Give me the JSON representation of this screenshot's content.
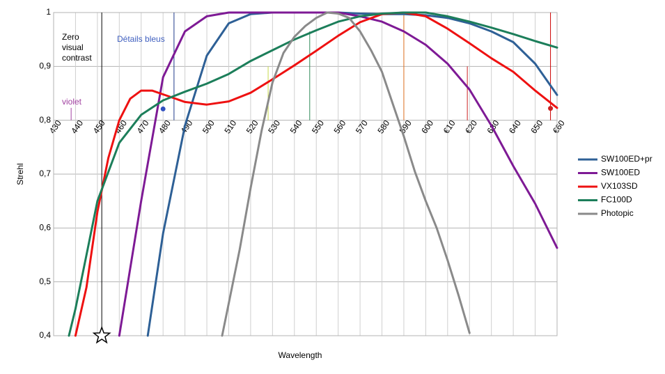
{
  "chart_data": {
    "type": "line",
    "x_label": "Wavelength",
    "y_label": "Strehl",
    "xlim": [
      430,
      660
    ],
    "ylim": [
      0.4,
      1
    ],
    "xticks": [
      430,
      440,
      450,
      460,
      470,
      480,
      490,
      500,
      510,
      520,
      530,
      540,
      550,
      560,
      570,
      580,
      590,
      600,
      {
        "value": 610,
        "label": "€10"
      },
      {
        "value": 620,
        "label": "€20"
      },
      630,
      640,
      650,
      {
        "value": 660,
        "label": "€60"
      }
    ],
    "yticks": [
      {
        "value": 0.4,
        "label": "0,4"
      },
      {
        "value": 0.5,
        "label": "0,5"
      },
      {
        "value": 0.6,
        "label": "0,6"
      },
      {
        "value": 0.7,
        "label": "0,7"
      },
      {
        "value": 0.8,
        "label": "0,8"
      },
      {
        "value": 0.9,
        "label": "0,9"
      },
      1
    ],
    "grid": true,
    "legend": "right",
    "series": [
      {
        "name": "SW100ED+pr",
        "color": "#2e6096",
        "x": [
          473,
          480,
          490,
          500,
          510,
          520,
          530,
          540,
          550,
          560,
          570,
          580,
          590,
          600,
          610,
          620,
          630,
          640,
          650,
          660
        ],
        "values": [
          0.4,
          0.59,
          0.79,
          0.92,
          0.98,
          0.997,
          1,
          1,
          1,
          1,
          0.998,
          0.997,
          0.997,
          0.995,
          0.99,
          0.98,
          0.965,
          0.945,
          0.905,
          0.847
        ]
      },
      {
        "name": "SW100ED",
        "color": "#7e1a95",
        "x": [
          460,
          470,
          480,
          490,
          500,
          510,
          520,
          530,
          540,
          550,
          560,
          570,
          580,
          590,
          600,
          610,
          620,
          630,
          640,
          650,
          660
        ],
        "values": [
          0.4,
          0.65,
          0.88,
          0.965,
          0.993,
          1,
          1,
          1,
          1,
          1,
          1,
          0.993,
          0.983,
          0.965,
          0.94,
          0.905,
          0.857,
          0.79,
          0.715,
          0.645,
          0.563
        ]
      },
      {
        "name": "VX103SD",
        "color": "#ee1111",
        "x": [
          440,
          445,
          450,
          455,
          460,
          465,
          470,
          475,
          480,
          490,
          500,
          510,
          520,
          530,
          540,
          550,
          560,
          570,
          580,
          590,
          600,
          610,
          620,
          630,
          640,
          650,
          660
        ],
        "values": [
          0.4,
          0.49,
          0.63,
          0.73,
          0.8,
          0.84,
          0.855,
          0.855,
          0.848,
          0.834,
          0.829,
          0.835,
          0.851,
          0.876,
          0.902,
          0.929,
          0.957,
          0.982,
          0.997,
          1,
          0.993,
          0.97,
          0.943,
          0.915,
          0.89,
          0.855,
          0.823
        ]
      },
      {
        "name": "FC100D",
        "color": "#1c7e5a",
        "x": [
          437,
          440,
          445,
          450,
          460,
          470,
          480,
          490,
          500,
          510,
          520,
          530,
          540,
          550,
          560,
          570,
          580,
          590,
          600,
          610,
          620,
          630,
          640,
          650,
          660
        ],
        "values": [
          0.4,
          0.45,
          0.55,
          0.65,
          0.758,
          0.81,
          0.837,
          0.853,
          0.868,
          0.886,
          0.91,
          0.93,
          0.95,
          0.967,
          0.983,
          0.993,
          0.998,
          1,
          1,
          0.993,
          0.983,
          0.972,
          0.96,
          0.947,
          0.935
        ]
      },
      {
        "name": "Photopic",
        "color": "#8a8a8a",
        "x": [
          507,
          510,
          515,
          520,
          525,
          530,
          535,
          540,
          545,
          550,
          555,
          560,
          565,
          570,
          575,
          580,
          585,
          590,
          595,
          600,
          605,
          610,
          615,
          620
        ],
        "values": [
          0.4,
          0.46,
          0.56,
          0.674,
          0.78,
          0.87,
          0.925,
          0.955,
          0.975,
          0.99,
          1,
          0.998,
          0.99,
          0.965,
          0.93,
          0.89,
          0.83,
          0.77,
          0.705,
          0.65,
          0.6,
          0.54,
          0.475,
          0.405
        ]
      }
    ],
    "markers": [
      {
        "kind": "line",
        "x": 438,
        "y": [
          0.8,
          0.823
        ],
        "color": "#a040a0"
      },
      {
        "kind": "line",
        "x": 485,
        "y": [
          0.8,
          1
        ],
        "color": "#1f3a8a"
      },
      {
        "kind": "line",
        "x": 528,
        "y": [
          0.8,
          0.9
        ],
        "color": "#c8d84a"
      },
      {
        "kind": "line",
        "x": 547,
        "y": [
          0.8,
          0.965
        ],
        "color": "#2e8b57"
      },
      {
        "kind": "line",
        "x": 590,
        "y": [
          0.8,
          1
        ],
        "color": "#e07020"
      },
      {
        "kind": "line",
        "x": 619,
        "y": [
          0.8,
          0.9
        ],
        "color": "#cc2020"
      },
      {
        "kind": "line",
        "x": 657,
        "y": [
          0.8,
          1
        ],
        "color": "#cc0000"
      },
      {
        "kind": "line",
        "x": 452,
        "y": [
          0.4,
          1
        ],
        "color": "#000000"
      },
      {
        "kind": "dot",
        "x": 480,
        "y": 0.821,
        "color": "#3050c0"
      },
      {
        "kind": "dot",
        "x": 657,
        "y": 0.822,
        "color": "#cc2020"
      },
      {
        "kind": "star",
        "x": 452,
        "y": 0.4,
        "color": "#000000"
      }
    ],
    "annotations": {
      "zero_contrast": [
        "Zero",
        "visual",
        "contrast"
      ],
      "blue_details": "Détails bleus",
      "violet": "violet"
    }
  }
}
